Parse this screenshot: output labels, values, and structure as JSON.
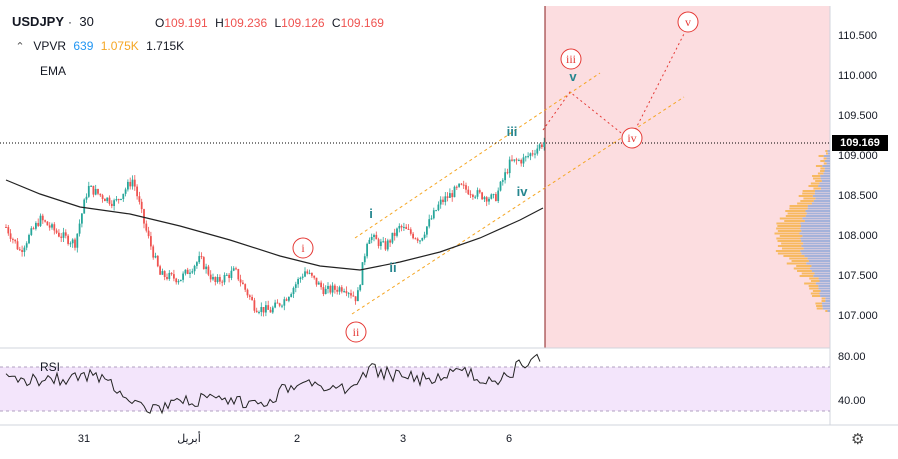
{
  "header": {
    "symbol": "USDJPY",
    "interval": "30",
    "open": "109.191",
    "high": "109.236",
    "low": "109.126",
    "close": "109.169",
    "vpvr_label": "VPVR",
    "vpvr_v1": "639",
    "vpvr_v2": "1.075K",
    "vpvr_v3": "1.715K",
    "ema_label": "EMA"
  },
  "price_axis": {
    "ticks": [
      "110.500",
      "110.000",
      "109.500",
      "109.000",
      "108.500",
      "108.000",
      "107.500",
      "107.000"
    ],
    "current_price": "109.169"
  },
  "rsi": {
    "label": "RSI",
    "ticks": [
      "80.00",
      "40.00"
    ]
  },
  "time_axis": {
    "ticks": [
      "31",
      "أبريل",
      "2",
      "3",
      "6"
    ]
  },
  "wave_labels": {
    "i_red": "i",
    "ii_red": "ii",
    "iii_red": "iii",
    "iv_red": "iv",
    "v_red": "v",
    "i_teal": "i",
    "ii_teal": "ii",
    "iii_teal": "iii",
    "iv_teal": "iv",
    "v_teal": "v"
  },
  "colors": {
    "bull": "#26a69a",
    "bear": "#ef5350",
    "forecast_zone": "#fcdde0",
    "wave_red": "#e53935",
    "wave_teal": "#26868f",
    "channel": "#f5a623",
    "rsi_band": "#f3e5fb",
    "vp_orange": "#f5b041",
    "vp_blue": "#8fa8d8"
  },
  "icons": {
    "settings": "gear-icon",
    "collapse": "chevron-up-icon"
  }
}
